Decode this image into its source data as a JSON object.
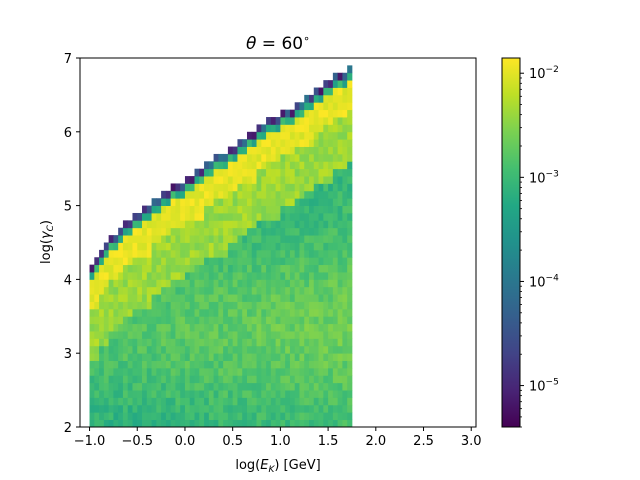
{
  "chart_data": {
    "type": "heatmap",
    "title": {
      "main": "θ",
      "suffix": " = 60",
      "degree": "∘"
    },
    "xlabel": {
      "pre": "log(",
      "var": "E",
      "sub": "K",
      "post": ") [GeV]"
    },
    "ylabel": {
      "pre": "log(",
      "var": "γ",
      "sub": "C",
      "post": ")"
    },
    "xlim": [
      -1.1,
      3.05
    ],
    "ylim": [
      2,
      7
    ],
    "xticks": [
      "−1.0",
      "−0.5",
      "0.0",
      "0.5",
      "1.0",
      "1.5",
      "2.0",
      "2.5",
      "3.0"
    ],
    "xtick_values": [
      -1.0,
      -0.5,
      0.0,
      0.5,
      1.0,
      1.5,
      2.0,
      2.5,
      3.0
    ],
    "yticks": [
      "2",
      "3",
      "4",
      "5",
      "6",
      "7"
    ],
    "ytick_values": [
      2,
      3,
      4,
      5,
      6,
      7
    ],
    "bin_width_x": 0.05,
    "bin_height_y": 0.1,
    "data_x_range": [
      -1.0,
      1.75
    ],
    "data_y_min": 2.0,
    "ridge_upper_edge": [
      [
        -1.0,
        4.2
      ],
      [
        -0.75,
        4.6
      ],
      [
        -0.5,
        4.9
      ],
      [
        -0.25,
        5.15
      ],
      [
        0.0,
        5.35
      ],
      [
        0.25,
        5.6
      ],
      [
        0.5,
        5.8
      ],
      [
        0.75,
        6.05
      ],
      [
        1.0,
        6.25
      ],
      [
        1.25,
        6.45
      ],
      [
        1.5,
        6.7
      ],
      [
        1.75,
        6.9
      ]
    ],
    "colorscale": "viridis",
    "colorbar": {
      "scale": "log",
      "range": [
        4e-06,
        0.014
      ],
      "ticks": [
        {
          "value": 1e-05,
          "base": "10",
          "exp": "−5"
        },
        {
          "value": 0.0001,
          "base": "10",
          "exp": "−4"
        },
        {
          "value": 0.001,
          "base": "10",
          "exp": "−3"
        },
        {
          "value": 0.01,
          "base": "10",
          "exp": "−2"
        }
      ]
    }
  }
}
